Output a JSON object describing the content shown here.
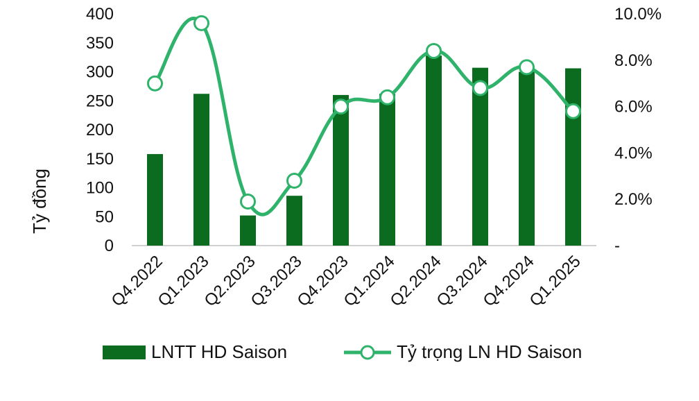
{
  "chart_data": {
    "type": "bar",
    "categories": [
      "Q4.2022",
      "Q1.2023",
      "Q2.2023",
      "Q3.2023",
      "Q4.2023",
      "Q1.2024",
      "Q2.2024",
      "Q3.2024",
      "Q4.2024",
      "Q1.2025"
    ],
    "series": [
      {
        "name": "LNTT HD Saison",
        "type": "bar",
        "axis": "left",
        "color": "#0b6b1f",
        "values": [
          158,
          262,
          52,
          86,
          260,
          262,
          328,
          307,
          300,
          306
        ]
      },
      {
        "name": "Tỷ trọng LN HD Saison",
        "type": "line",
        "axis": "right",
        "color": "#2fb36b",
        "values": [
          0.07,
          0.096,
          0.019,
          0.028,
          0.06,
          0.064,
          0.084,
          0.068,
          0.077,
          0.058
        ]
      }
    ],
    "ylabel": "Tỷ đồng",
    "ylim": [
      0,
      400
    ],
    "yticks": [
      "0",
      "50",
      "100",
      "150",
      "200",
      "250",
      "300",
      "350",
      "400"
    ],
    "y2lim": [
      0,
      0.1
    ],
    "y2ticks": [
      "-",
      "2.0%",
      "4.0%",
      "6.0%",
      "8.0%",
      "10.0%"
    ],
    "grid": false,
    "legend_position": "bottom"
  }
}
